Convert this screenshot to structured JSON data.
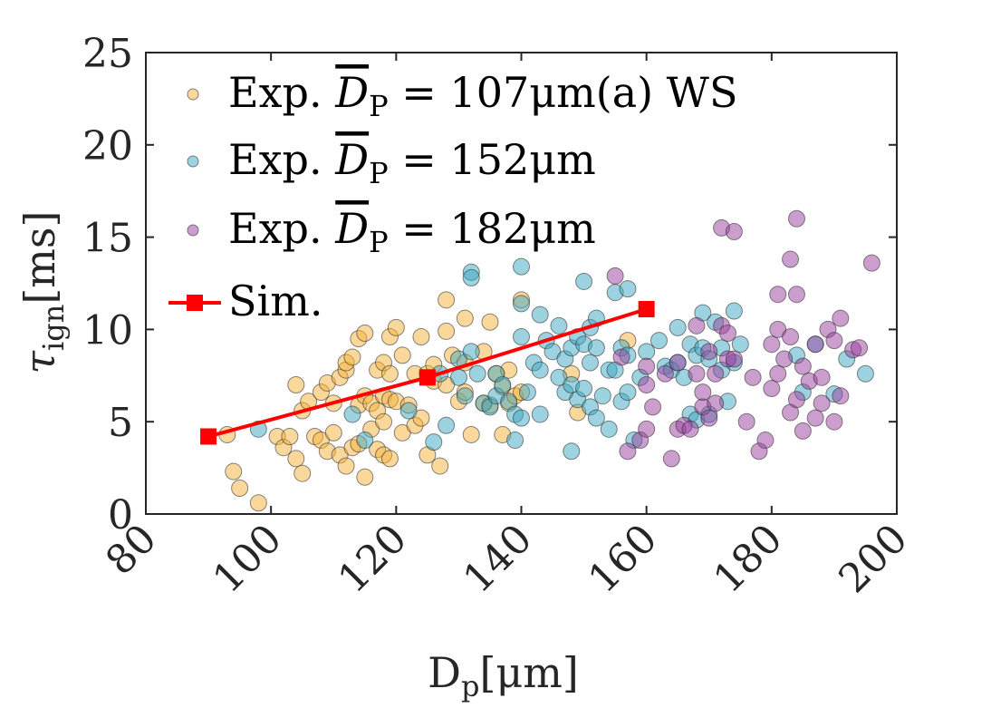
{
  "chart_data": {
    "type": "scatter",
    "title": "",
    "xlabel": "D_p[μm]",
    "ylabel": "τ_ign[ms]",
    "xlim": [
      80,
      200
    ],
    "ylim": [
      0,
      25
    ],
    "xticks": [
      80,
      100,
      120,
      140,
      160,
      180,
      200
    ],
    "yticks": [
      0,
      5,
      10,
      15,
      20,
      25
    ],
    "grid": false,
    "legend_position": "top-left",
    "series": [
      {
        "name": "Exp. D̄_P = 107μm(a) WS",
        "color": "#f5b23a",
        "kind": "scatter",
        "points": [
          [
            93,
            4.3
          ],
          [
            94,
            2.3
          ],
          [
            95,
            1.4
          ],
          [
            98,
            0.6
          ],
          [
            101,
            4.2
          ],
          [
            102,
            3.6
          ],
          [
            103,
            4.2
          ],
          [
            104,
            7.0
          ],
          [
            104,
            3.0
          ],
          [
            105,
            5.6
          ],
          [
            105,
            2.2
          ],
          [
            106,
            6.1
          ],
          [
            107,
            4.2
          ],
          [
            108,
            6.6
          ],
          [
            108,
            4.0
          ],
          [
            109,
            7.1
          ],
          [
            109,
            3.4
          ],
          [
            110,
            6.0
          ],
          [
            110,
            4.4
          ],
          [
            111,
            7.4
          ],
          [
            111,
            3.2
          ],
          [
            112,
            7.8
          ],
          [
            112,
            2.6
          ],
          [
            112,
            8.2
          ],
          [
            113,
            8.5
          ],
          [
            113,
            3.6
          ],
          [
            114,
            9.5
          ],
          [
            114,
            5.9
          ],
          [
            114,
            3.8
          ],
          [
            115,
            9.8
          ],
          [
            115,
            6.4
          ],
          [
            115,
            2.0
          ],
          [
            116,
            6.0
          ],
          [
            116,
            4.6
          ],
          [
            117,
            7.8
          ],
          [
            117,
            5.6
          ],
          [
            117,
            3.5
          ],
          [
            118,
            8.2
          ],
          [
            118,
            6.4
          ],
          [
            118,
            5.0
          ],
          [
            118,
            3.2
          ],
          [
            119,
            9.6
          ],
          [
            119,
            7.6
          ],
          [
            119,
            6.2
          ],
          [
            119,
            3.0
          ],
          [
            120,
            10.1
          ],
          [
            120,
            6.1
          ],
          [
            121,
            4.4
          ],
          [
            121,
            8.6
          ],
          [
            122,
            5.9
          ],
          [
            123,
            7.6
          ],
          [
            123,
            4.8
          ],
          [
            124,
            9.6
          ],
          [
            124,
            5.2
          ],
          [
            125,
            7.6
          ],
          [
            125,
            3.2
          ],
          [
            126,
            8.1
          ],
          [
            126,
            7.2
          ],
          [
            127,
            2.6
          ],
          [
            128,
            11.6
          ],
          [
            128,
            9.9
          ],
          [
            128,
            7.0
          ],
          [
            129,
            8.6
          ],
          [
            130,
            6.1
          ],
          [
            131,
            10.6
          ],
          [
            131,
            6.6
          ],
          [
            131,
            8.2
          ],
          [
            132,
            4.3
          ],
          [
            134,
            8.8
          ],
          [
            134,
            6.0
          ],
          [
            135,
            10.4
          ],
          [
            135,
            5.9
          ],
          [
            136,
            7.6
          ],
          [
            137,
            6.9
          ],
          [
            137,
            4.3
          ],
          [
            138,
            7.8
          ],
          [
            138,
            6.0
          ],
          [
            139,
            6.4
          ],
          [
            140,
            11.6
          ],
          [
            140,
            6.6
          ],
          [
            148,
            7.6
          ],
          [
            149,
            5.5
          ],
          [
            157,
            9.4
          ]
        ]
      },
      {
        "name": "Exp. D̄_P = 152μm",
        "color": "#3ba8c4",
        "kind": "scatter",
        "points": [
          [
            98,
            4.6
          ],
          [
            113,
            5.4
          ],
          [
            115,
            4.0
          ],
          [
            122,
            5.6
          ],
          [
            126,
            3.9
          ],
          [
            127,
            7.6
          ],
          [
            128,
            4.8
          ],
          [
            130,
            7.4
          ],
          [
            130,
            8.4
          ],
          [
            131,
            6.4
          ],
          [
            132,
            13.1
          ],
          [
            132,
            12.8
          ],
          [
            132,
            8.8
          ],
          [
            133,
            7.6
          ],
          [
            134,
            6.0
          ],
          [
            135,
            5.8
          ],
          [
            136,
            6.4
          ],
          [
            136,
            7.6
          ],
          [
            137,
            7.0
          ],
          [
            138,
            6.1
          ],
          [
            139,
            5.4
          ],
          [
            139,
            4.0
          ],
          [
            140,
            13.4
          ],
          [
            140,
            11.4
          ],
          [
            140,
            9.6
          ],
          [
            140,
            5.2
          ],
          [
            141,
            6.6
          ],
          [
            142,
            8.2
          ],
          [
            143,
            10.8
          ],
          [
            143,
            7.8
          ],
          [
            143,
            5.4
          ],
          [
            144,
            9.4
          ],
          [
            145,
            8.8
          ],
          [
            146,
            10.2
          ],
          [
            146,
            7.4
          ],
          [
            147,
            8.4
          ],
          [
            147,
            6.6
          ],
          [
            148,
            9.0
          ],
          [
            148,
            7.0
          ],
          [
            148,
            3.4
          ],
          [
            149,
            9.6
          ],
          [
            149,
            6.2
          ],
          [
            150,
            12.6
          ],
          [
            150,
            9.2
          ],
          [
            150,
            6.8
          ],
          [
            151,
            10.1
          ],
          [
            151,
            8.2
          ],
          [
            151,
            5.8
          ],
          [
            152,
            10.6
          ],
          [
            152,
            9.0
          ],
          [
            152,
            5.2
          ],
          [
            153,
            6.4
          ],
          [
            154,
            7.8
          ],
          [
            154,
            4.6
          ],
          [
            155,
            12.0
          ],
          [
            155,
            7.8
          ],
          [
            156,
            9.0
          ],
          [
            156,
            6.1
          ],
          [
            157,
            12.2
          ],
          [
            157,
            8.6
          ],
          [
            157,
            6.6
          ],
          [
            158,
            4.0
          ],
          [
            159,
            7.4
          ],
          [
            160,
            8.8
          ],
          [
            162,
            9.4
          ],
          [
            163,
            8.0
          ],
          [
            164,
            7.8
          ],
          [
            165,
            10.1
          ],
          [
            165,
            8.2
          ],
          [
            166,
            7.4
          ],
          [
            167,
            9.2
          ],
          [
            167,
            5.4
          ],
          [
            168,
            8.6
          ],
          [
            168,
            5.1
          ],
          [
            169,
            10.9
          ],
          [
            169,
            9.0
          ],
          [
            170,
            8.4
          ],
          [
            170,
            5.4
          ],
          [
            171,
            10.4
          ],
          [
            172,
            9.0
          ],
          [
            172,
            7.8
          ],
          [
            173,
            6.1
          ],
          [
            174,
            11.0
          ],
          [
            174,
            8.2
          ],
          [
            175,
            9.2
          ],
          [
            184,
            8.6
          ],
          [
            185,
            6.6
          ],
          [
            187,
            9.2
          ],
          [
            190,
            6.5
          ],
          [
            192,
            8.4
          ],
          [
            195,
            7.6
          ]
        ]
      },
      {
        "name": "Exp. D̄_P = 182μm",
        "color": "#9a3d9e",
        "kind": "scatter",
        "points": [
          [
            155,
            12.9
          ],
          [
            156,
            8.5
          ],
          [
            157,
            3.4
          ],
          [
            159,
            4.0
          ],
          [
            160,
            7.0
          ],
          [
            160,
            4.6
          ],
          [
            160,
            8.0
          ],
          [
            161,
            5.8
          ],
          [
            163,
            7.6
          ],
          [
            164,
            3.0
          ],
          [
            165,
            8.2
          ],
          [
            165,
            4.6
          ],
          [
            166,
            4.8
          ],
          [
            167,
            4.6
          ],
          [
            168,
            7.6
          ],
          [
            168,
            10.2
          ],
          [
            169,
            5.8
          ],
          [
            169,
            6.6
          ],
          [
            170,
            8.8
          ],
          [
            170,
            5.2
          ],
          [
            171,
            7.6
          ],
          [
            171,
            6.0
          ],
          [
            172,
            15.5
          ],
          [
            172,
            10.2
          ],
          [
            173,
            8.4
          ],
          [
            173,
            9.8
          ],
          [
            174,
            15.3
          ],
          [
            174,
            8.4
          ],
          [
            176,
            5.0
          ],
          [
            177,
            7.4
          ],
          [
            178,
            3.4
          ],
          [
            179,
            4.0
          ],
          [
            180,
            9.2
          ],
          [
            180,
            6.8
          ],
          [
            181,
            11.9
          ],
          [
            181,
            10.0
          ],
          [
            181,
            7.6
          ],
          [
            182,
            8.4
          ],
          [
            183,
            9.6
          ],
          [
            183,
            13.8
          ],
          [
            183,
            5.5
          ],
          [
            184,
            16.0
          ],
          [
            184,
            11.9
          ],
          [
            184,
            6.2
          ],
          [
            185,
            8.0
          ],
          [
            185,
            4.5
          ],
          [
            186,
            7.2
          ],
          [
            187,
            9.2
          ],
          [
            187,
            5.2
          ],
          [
            188,
            7.4
          ],
          [
            188,
            6.0
          ],
          [
            189,
            10.0
          ],
          [
            190,
            9.4
          ],
          [
            190,
            5.0
          ],
          [
            191,
            10.6
          ],
          [
            191,
            6.4
          ],
          [
            193,
            8.9
          ],
          [
            194,
            9.0
          ],
          [
            196,
            13.6
          ]
        ]
      },
      {
        "name": "Sim.",
        "color": "#ff0000",
        "kind": "line",
        "points": [
          [
            90,
            4.2
          ],
          [
            125,
            7.4
          ],
          [
            160,
            11.1
          ]
        ]
      }
    ]
  }
}
